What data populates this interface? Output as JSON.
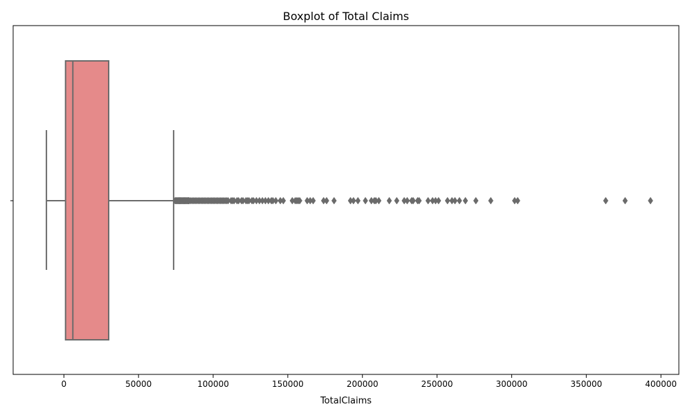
{
  "chart_data": {
    "type": "box",
    "title": "Boxplot of Total Claims",
    "xlabel": "TotalClaims",
    "ylabel": "",
    "xlim": [
      -34000,
      412000
    ],
    "xticks": [
      0,
      50000,
      100000,
      150000,
      200000,
      250000,
      300000,
      350000,
      400000
    ],
    "xtick_labels": [
      "0",
      "50000",
      "100000",
      "150000",
      "200000",
      "250000",
      "300000",
      "350000",
      "400000"
    ],
    "grid": false,
    "box": {
      "whisker_low": -11700,
      "q1": 1100,
      "median": 6000,
      "q3": 30000,
      "whisker_high": 73500,
      "fill": "#e58a8a",
      "edge": "#6b6b6b"
    },
    "outliers": [
      74500,
      75000,
      75500,
      76000,
      76500,
      77000,
      77500,
      78000,
      78500,
      79000,
      79500,
      80000,
      80500,
      81000,
      81500,
      82000,
      82500,
      83000,
      83500,
      84000,
      85000,
      86000,
      87000,
      88000,
      89000,
      90000,
      91000,
      92000,
      93000,
      94000,
      95000,
      96000,
      97000,
      98000,
      99000,
      100000,
      101000,
      102000,
      103000,
      104000,
      105000,
      106000,
      107000,
      108000,
      109000,
      110000,
      112000,
      113000,
      114000,
      116000,
      117000,
      119000,
      120000,
      122000,
      123000,
      124000,
      126000,
      127000,
      129000,
      131000,
      133000,
      135000,
      137000,
      139000,
      140000,
      142000,
      145000,
      147000,
      153000,
      155000,
      156000,
      157000,
      158000,
      163000,
      165000,
      167000,
      174000,
      176000,
      181000,
      192000,
      194000,
      197000,
      202000,
      206000,
      208000,
      209000,
      211000,
      218000,
      223000,
      228000,
      230000,
      233000,
      234000,
      237000,
      238000,
      244000,
      247000,
      249000,
      251000,
      257000,
      260000,
      262000,
      265000,
      269000,
      276000,
      286000,
      302000,
      304000,
      363000,
      376000,
      393000
    ]
  }
}
